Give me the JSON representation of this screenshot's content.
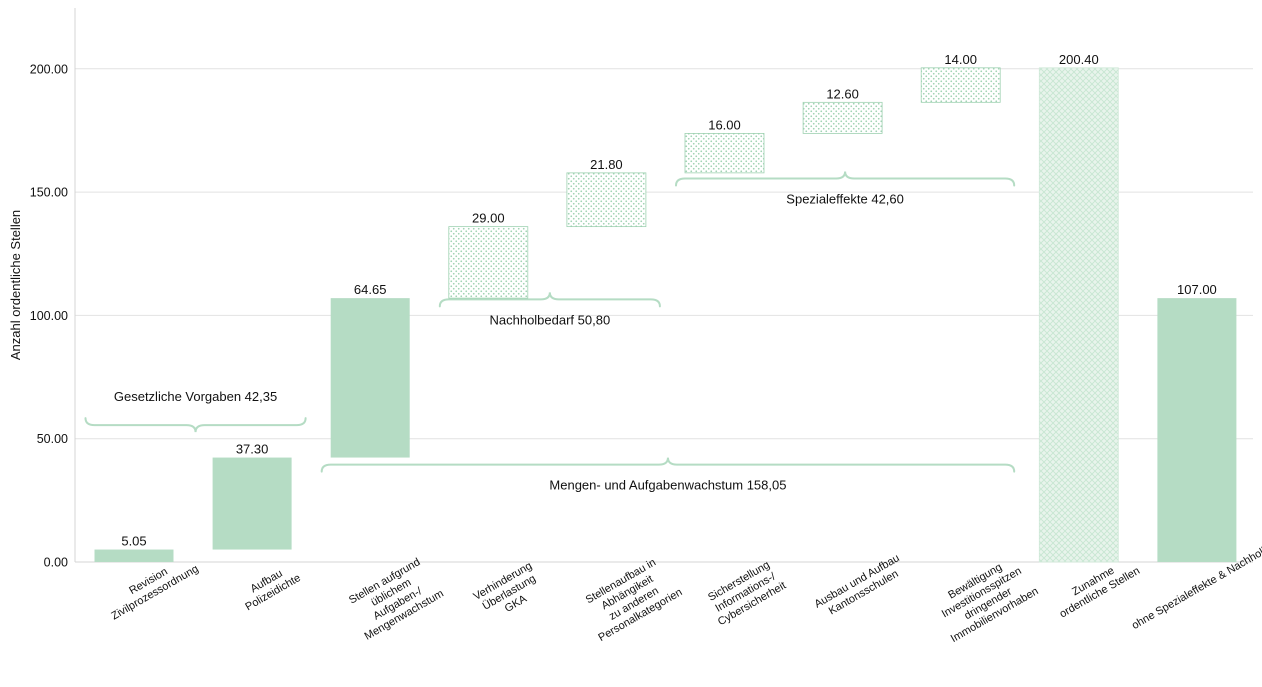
{
  "chart_data": {
    "type": "bar",
    "subtype": "waterfall",
    "ylabel": "Anzahl ordentliche Stellen",
    "ylim": [
      0,
      225
    ],
    "yticks": [
      "0.00",
      "50.00",
      "100.00",
      "150.00",
      "200.00"
    ],
    "ytick_values": [
      0,
      50,
      100,
      150,
      200
    ],
    "grid": true,
    "colors": {
      "bar": "#b5dcc4",
      "hatch": "#9fd2b2",
      "brace": "#b5dcc4",
      "grid": "#e2e2e2"
    },
    "bars": [
      {
        "category": [
          "Revision",
          "Zivilprozessordnung"
        ],
        "value": 5.05,
        "start": 0,
        "end": 5.05,
        "label": "5.05",
        "style": "solid"
      },
      {
        "category": [
          "Aufbau",
          "Polizeidichte"
        ],
        "value": 37.3,
        "start": 5.05,
        "end": 42.35,
        "label": "37.30",
        "style": "solid"
      },
      {
        "category": [
          "Stellen aufgrund",
          "üblichem",
          "Aufgaben-/",
          "Mengenwachstum"
        ],
        "value": 64.65,
        "start": 42.35,
        "end": 107.0,
        "label": "64.65",
        "style": "solid"
      },
      {
        "category": [
          "Verhinderung",
          "Überlastung",
          "GKA"
        ],
        "value": 29.0,
        "start": 107.0,
        "end": 136.0,
        "label": "29.00",
        "style": "dotted"
      },
      {
        "category": [
          "Stellenaufbau in",
          "Abhängikeit",
          "zu anderen",
          "Personalkategorien"
        ],
        "value": 21.8,
        "start": 136.0,
        "end": 157.8,
        "label": "21.80",
        "style": "dotted"
      },
      {
        "category": [
          "Sicherstellung",
          "Informations-/",
          "Cybersicherheit"
        ],
        "value": 16.0,
        "start": 157.8,
        "end": 173.8,
        "label": "16.00",
        "style": "dotted"
      },
      {
        "category": [
          "Ausbau und Aufbau",
          "Kantonsschulen"
        ],
        "value": 12.6,
        "start": 173.8,
        "end": 186.4,
        "label": "12.60",
        "style": "dotted"
      },
      {
        "category": [
          "Bewältigung",
          "Investitionsspitzen",
          "dringender",
          "Immobilienvorhaben"
        ],
        "value": 14.0,
        "start": 186.4,
        "end": 200.4,
        "label": "14.00",
        "style": "dotted"
      },
      {
        "category": [
          "Zunahme",
          "ordentliche Stellen"
        ],
        "value": 200.4,
        "start": 0,
        "end": 200.4,
        "label": "200.40",
        "style": "crosshatch"
      },
      {
        "category": [
          "ohne Spezialeffekte & Nachholbedarf"
        ],
        "value": 107.0,
        "start": 0,
        "end": 107.0,
        "label": "107.00",
        "style": "solid"
      }
    ],
    "annotations": [
      {
        "text": "Gesetzliche Vorgaben 42,35",
        "from_bar": 0,
        "to_bar": 1,
        "brace_y": 55.5,
        "direction": "down",
        "label_position": "above"
      },
      {
        "text": "Nachholbedarf 50,80",
        "from_bar": 3,
        "to_bar": 4,
        "brace_y": 106.5,
        "direction": "up",
        "label_position": "below"
      },
      {
        "text": "Spezialeffekte 42,60",
        "from_bar": 5,
        "to_bar": 7,
        "brace_y": 155.5,
        "direction": "up",
        "label_position": "below"
      },
      {
        "text": "Mengen- und Aufgabenwachstum 158,05",
        "from_bar": 2,
        "to_bar": 7,
        "brace_y": 39.5,
        "direction": "up",
        "label_position": "below"
      }
    ]
  }
}
